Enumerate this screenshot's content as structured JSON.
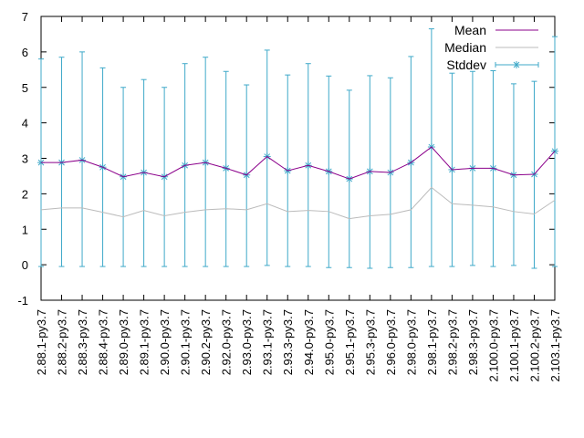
{
  "chart_data": {
    "type": "line",
    "title": "",
    "xlabel": "",
    "ylabel": "",
    "ylim": [
      -1,
      7
    ],
    "yticks": [
      -1,
      0,
      1,
      2,
      3,
      4,
      5,
      6,
      7
    ],
    "grid": false,
    "legend_position": "top-right",
    "categories": [
      "2.88.1-py3.7",
      "2.88.2-py3.7",
      "2.88.3-py3.7",
      "2.88.4-py3.7",
      "2.89.0-py3.7",
      "2.89.1-py3.7",
      "2.90.0-py3.7",
      "2.90.1-py3.7",
      "2.90.2-py3.7",
      "2.92.0-py3.7",
      "2.93.0-py3.7",
      "2.93.1-py3.7",
      "2.93.3-py3.7",
      "2.94.0-py3.7",
      "2.95.0-py3.7",
      "2.95.1-py3.7",
      "2.95.3-py3.7",
      "2.96.0-py3.7",
      "2.98.0-py3.7",
      "2.98.1-py3.7",
      "2.98.2-py3.7",
      "2.98.3-py3.7",
      "2.100.0-py3.7",
      "2.100.1-py3.7",
      "2.100.2-py3.7",
      "2.103.1-py3.7"
    ],
    "series": [
      {
        "name": "Mean",
        "color": "#8b008b",
        "values": [
          2.88,
          2.88,
          2.95,
          2.75,
          2.48,
          2.6,
          2.48,
          2.8,
          2.88,
          2.72,
          2.53,
          3.05,
          2.65,
          2.8,
          2.63,
          2.42,
          2.63,
          2.6,
          2.88,
          3.32,
          2.68,
          2.72,
          2.72,
          2.53,
          2.55,
          3.2
        ]
      },
      {
        "name": "Median",
        "color": "#bbbbbb",
        "values": [
          1.55,
          1.6,
          1.6,
          1.48,
          1.35,
          1.53,
          1.38,
          1.48,
          1.55,
          1.58,
          1.55,
          1.72,
          1.5,
          1.53,
          1.5,
          1.3,
          1.38,
          1.42,
          1.55,
          2.18,
          1.72,
          1.68,
          1.63,
          1.5,
          1.43,
          1.82
        ]
      },
      {
        "name": "Stddev",
        "color": "#3fa9c9",
        "error_low": [
          -0.05,
          -0.05,
          -0.05,
          -0.05,
          -0.05,
          -0.05,
          -0.05,
          -0.05,
          -0.05,
          -0.05,
          -0.05,
          -0.02,
          -0.05,
          -0.05,
          -0.08,
          -0.08,
          -0.1,
          -0.08,
          -0.08,
          -0.05,
          -0.05,
          -0.02,
          -0.05,
          -0.02,
          -0.1,
          -0.05
        ],
        "error_high": [
          5.8,
          5.85,
          6.0,
          5.55,
          5.0,
          5.22,
          5.0,
          5.67,
          5.85,
          5.45,
          5.07,
          6.05,
          5.35,
          5.67,
          5.32,
          4.92,
          5.33,
          5.27,
          5.87,
          6.65,
          5.4,
          5.45,
          5.47,
          5.1,
          5.17,
          6.43
        ]
      }
    ]
  }
}
